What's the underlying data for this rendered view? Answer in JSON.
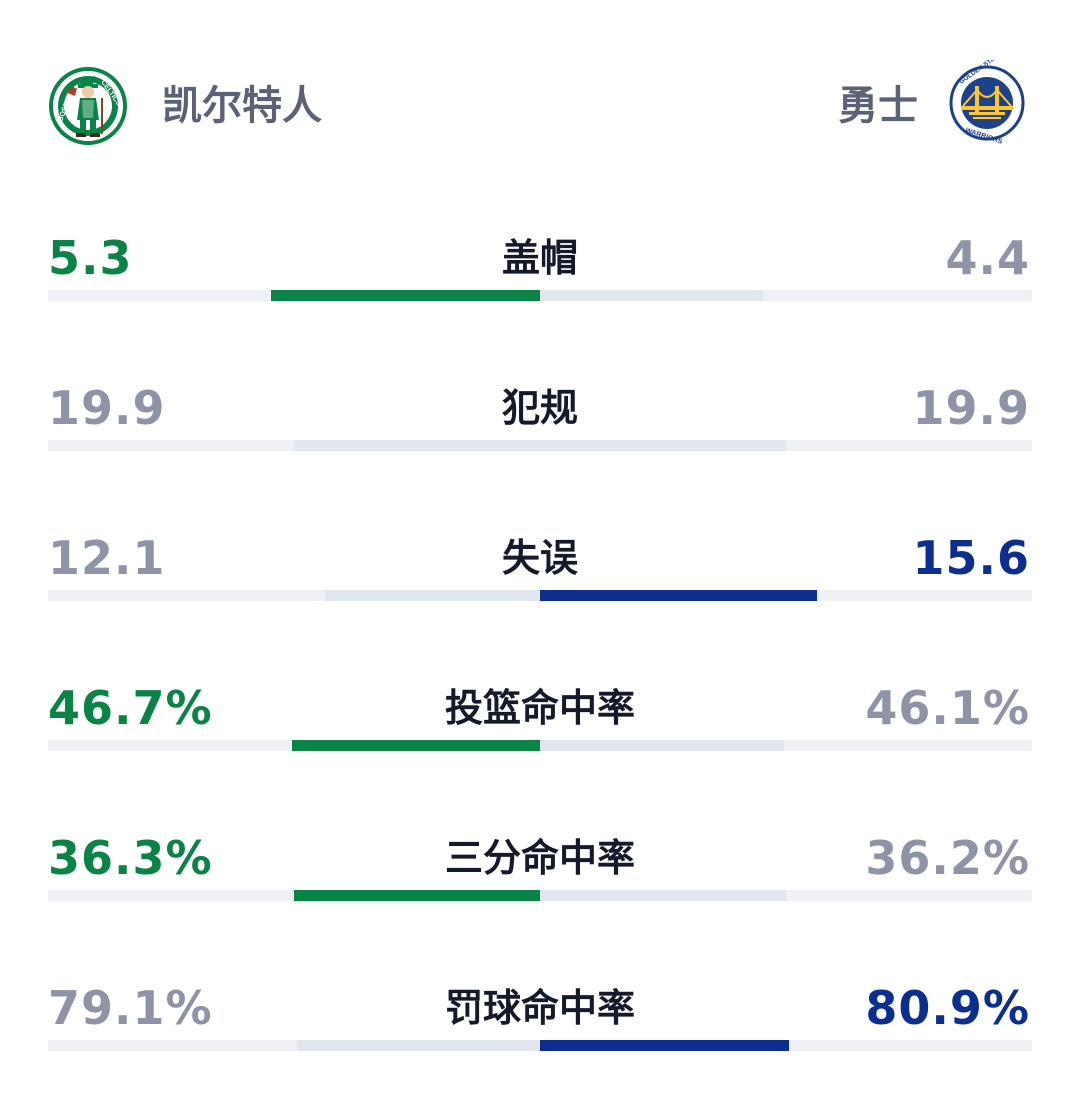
{
  "colors": {
    "celtics_green": "#0a8346",
    "warriors_blue": "#0b2e8f",
    "muted_gray": "#8e94a6",
    "label_dark": "#151a2b"
  },
  "teams": {
    "left": {
      "name": "凯尔特人",
      "logo": "boston-celtics-logo",
      "logo_text": "BOSTON CELTICS"
    },
    "right": {
      "name": "勇士",
      "logo": "golden-state-warriors-logo",
      "logo_text": "GOLDEN STATE WARRIORS"
    }
  },
  "stats": [
    {
      "label": "盖帽",
      "left": "5.3",
      "right": "4.4",
      "left_value": 5.3,
      "right_value": 4.4,
      "leader": "left"
    },
    {
      "label": "犯规",
      "left": "19.9",
      "right": "19.9",
      "left_value": 19.9,
      "right_value": 19.9,
      "leader": "none"
    },
    {
      "label": "失误",
      "left": "12.1",
      "right": "15.6",
      "left_value": 12.1,
      "right_value": 15.6,
      "leader": "right"
    },
    {
      "label": "投篮命中率",
      "left": "46.7%",
      "right": "46.1%",
      "left_value": 46.7,
      "right_value": 46.1,
      "leader": "left"
    },
    {
      "label": "三分命中率",
      "left": "36.3%",
      "right": "36.2%",
      "left_value": 36.3,
      "right_value": 36.2,
      "leader": "left"
    },
    {
      "label": "罚球命中率",
      "left": "79.1%",
      "right": "80.9%",
      "left_value": 79.1,
      "right_value": 80.9,
      "leader": "right"
    }
  ]
}
